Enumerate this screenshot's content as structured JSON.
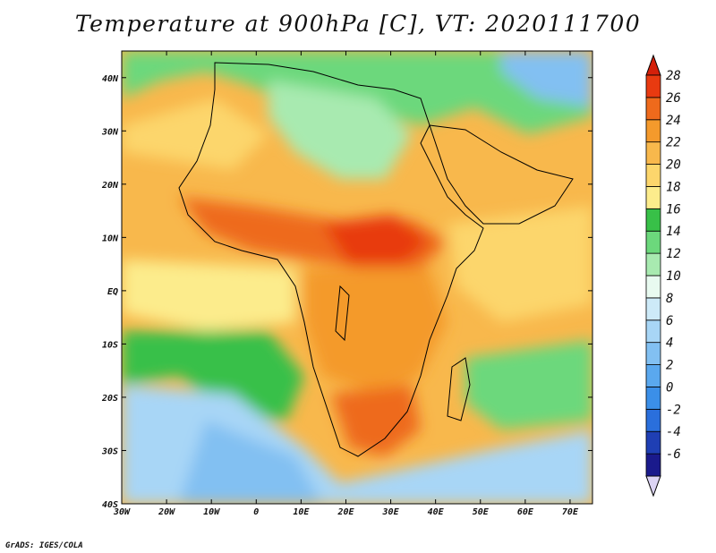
{
  "title": "Temperature at 900hPa [C], VT: 2020111700",
  "footer": "GrADS: IGES/COLA",
  "map": {
    "lon_range": [
      -30,
      75
    ],
    "lat_range": [
      -40,
      45
    ],
    "lon_ticks": [
      {
        "value": -30,
        "label": "30W"
      },
      {
        "value": -20,
        "label": "20W"
      },
      {
        "value": -10,
        "label": "10W"
      },
      {
        "value": 0,
        "label": "0"
      },
      {
        "value": 10,
        "label": "10E"
      },
      {
        "value": 20,
        "label": "20E"
      },
      {
        "value": 30,
        "label": "30E"
      },
      {
        "value": 40,
        "label": "40E"
      },
      {
        "value": 50,
        "label": "50E"
      },
      {
        "value": 60,
        "label": "60E"
      },
      {
        "value": 70,
        "label": "70E"
      }
    ],
    "lat_ticks": [
      {
        "value": 40,
        "label": "40N"
      },
      {
        "value": 30,
        "label": "30N"
      },
      {
        "value": 20,
        "label": "20N"
      },
      {
        "value": 10,
        "label": "10N"
      },
      {
        "value": 0,
        "label": "EQ"
      },
      {
        "value": -10,
        "label": "10S"
      },
      {
        "value": -20,
        "label": "20S"
      },
      {
        "value": -30,
        "label": "30S"
      },
      {
        "value": -40,
        "label": "40S"
      }
    ]
  },
  "colorbar": {
    "levels": [
      "-6",
      "-4",
      "-2",
      "0",
      "2",
      "4",
      "6",
      "8",
      "10",
      "12",
      "14",
      "16",
      "18",
      "20",
      "22",
      "24",
      "26",
      "28"
    ],
    "colors": [
      "#1a1a8c",
      "#1f3fb4",
      "#2a6fdc",
      "#3b8fe8",
      "#5aa8ee",
      "#82c0f2",
      "#a8d6f6",
      "#cdeaf8",
      "#e8faf0",
      "#a8eab0",
      "#6cd87c",
      "#38c048",
      "#fcec8c",
      "#fcd66c",
      "#f8b84c",
      "#f49a2c",
      "#ee6a1c",
      "#e83a10"
    ],
    "low_cap_color": "#dcd4f4",
    "high_cap_color": "#d4200a"
  }
}
